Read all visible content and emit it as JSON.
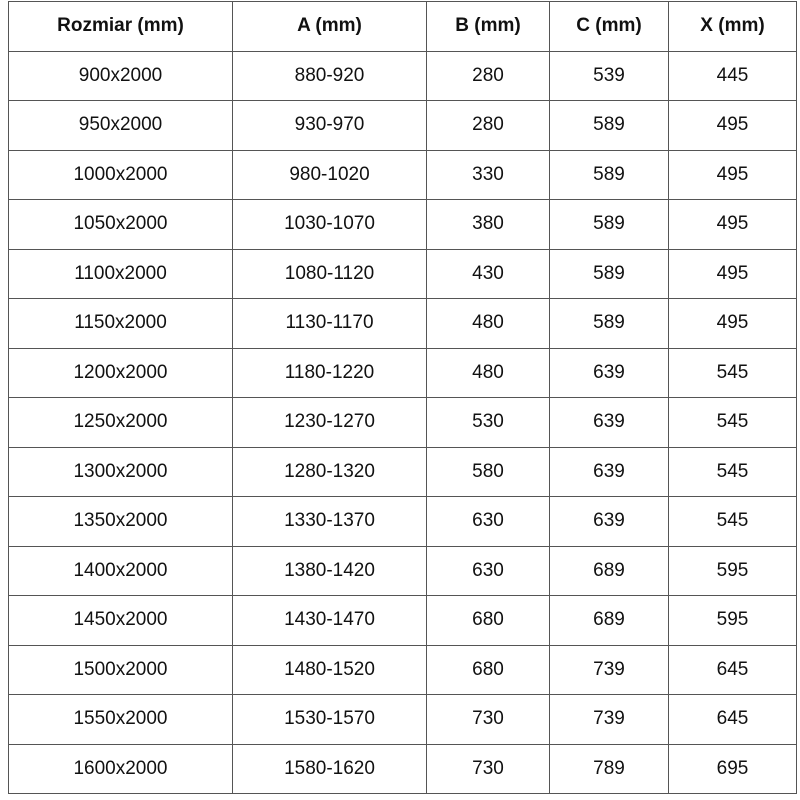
{
  "table": {
    "headers": [
      "Rozmiar (mm)",
      "A (mm)",
      "B (mm)",
      "C (mm)",
      "X (mm)"
    ],
    "rows": [
      [
        "900x2000",
        "880-920",
        "280",
        "539",
        "445"
      ],
      [
        "950x2000",
        "930-970",
        "280",
        "589",
        "495"
      ],
      [
        "1000x2000",
        "980-1020",
        "330",
        "589",
        "495"
      ],
      [
        "1050x2000",
        "1030-1070",
        "380",
        "589",
        "495"
      ],
      [
        "1100x2000",
        "1080-1120",
        "430",
        "589",
        "495"
      ],
      [
        "1150x2000",
        "1130-1170",
        "480",
        "589",
        "495"
      ],
      [
        "1200x2000",
        "1180-1220",
        "480",
        "639",
        "545"
      ],
      [
        "1250x2000",
        "1230-1270",
        "530",
        "639",
        "545"
      ],
      [
        "1300x2000",
        "1280-1320",
        "580",
        "639",
        "545"
      ],
      [
        "1350x2000",
        "1330-1370",
        "630",
        "639",
        "545"
      ],
      [
        "1400x2000",
        "1380-1420",
        "630",
        "689",
        "595"
      ],
      [
        "1450x2000",
        "1430-1470",
        "680",
        "689",
        "595"
      ],
      [
        "1500x2000",
        "1480-1520",
        "680",
        "739",
        "645"
      ],
      [
        "1550x2000",
        "1530-1570",
        "730",
        "739",
        "645"
      ],
      [
        "1600x2000",
        "1580-1620",
        "730",
        "789",
        "695"
      ]
    ]
  }
}
